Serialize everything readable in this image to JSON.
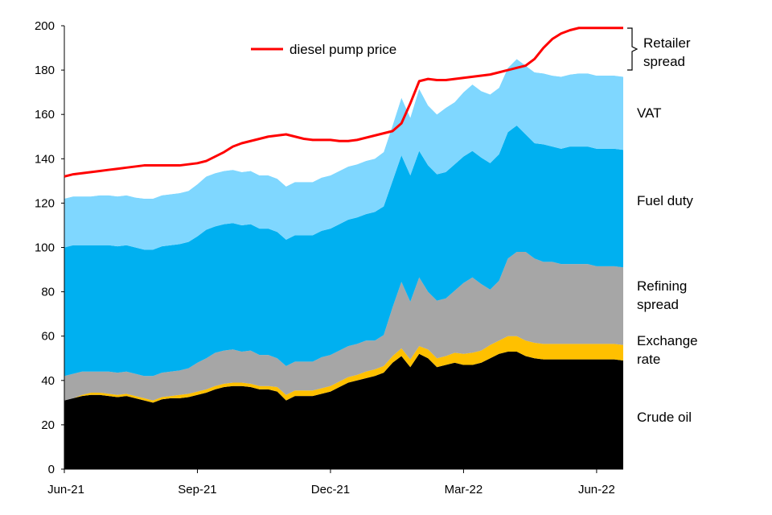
{
  "chart_data": {
    "type": "area",
    "stacked": true,
    "title": "",
    "xlabel": "",
    "ylabel": "",
    "ylim": [
      0,
      200
    ],
    "y_ticks": [
      0,
      20,
      40,
      60,
      80,
      100,
      120,
      140,
      160,
      180,
      200
    ],
    "x_tick_labels": [
      "Jun-21",
      "Sep-21",
      "Dec-21",
      "Mar-22",
      "Jun-22"
    ],
    "x_tick_index": [
      0,
      15,
      30,
      45,
      60
    ],
    "grid": false,
    "legend": {
      "position": "top-center",
      "entries": [
        "diesel pump price"
      ]
    },
    "x_count": 64,
    "series": [
      {
        "name": "Crude oil",
        "color": "#000000",
        "values": [
          31,
          32,
          33,
          33.5,
          33.5,
          33,
          32.5,
          33,
          32,
          31,
          30,
          31.5,
          32,
          32,
          32.5,
          33.5,
          34.5,
          36,
          37,
          37.5,
          37.5,
          37,
          36,
          36,
          35,
          31,
          33,
          33,
          33,
          34,
          35,
          37,
          39,
          40,
          41,
          42,
          43.5,
          48,
          51,
          46,
          52,
          50,
          46,
          47,
          48,
          47,
          47,
          48,
          50,
          52,
          53,
          53,
          51,
          50,
          49.5,
          49.5,
          49.5,
          49.5,
          49.5,
          49.5,
          49.5,
          49.5,
          49.5,
          49
        ]
      },
      {
        "name": "Exchange rate",
        "color": "#ffc000",
        "values": [
          0,
          0,
          0.5,
          1,
          1,
          1,
          1,
          1,
          1,
          1,
          1,
          1,
          1,
          1.5,
          1.5,
          1.5,
          1.5,
          1.5,
          1.5,
          1.5,
          1.5,
          1.5,
          1.5,
          1.5,
          2,
          2.5,
          2.5,
          2.5,
          2.5,
          2.5,
          2.5,
          2.5,
          2.5,
          2.5,
          3,
          3,
          3,
          3,
          3.5,
          3.5,
          3.5,
          4,
          4,
          4,
          4.5,
          5,
          5.5,
          5.5,
          6,
          6,
          7,
          7,
          7,
          7,
          7,
          7,
          7,
          7,
          7,
          7,
          7,
          7,
          7,
          7
        ]
      },
      {
        "name": "Refining spread",
        "color": "#a6a6a6",
        "values": [
          11,
          11,
          10.5,
          9.5,
          9.5,
          10,
          10,
          10,
          10,
          10,
          11,
          11,
          11,
          11,
          11.5,
          13,
          14,
          15,
          15,
          15,
          14,
          15,
          14,
          14,
          13,
          13,
          13,
          13,
          13,
          14,
          14,
          14,
          14,
          14,
          14,
          13,
          14,
          22,
          30,
          26,
          31,
          26,
          26,
          26,
          28,
          32,
          34,
          30,
          25,
          27,
          35,
          38,
          40,
          38,
          37,
          37,
          36,
          36,
          36,
          36,
          35,
          35,
          35,
          35
        ]
      },
      {
        "name": "Fuel duty",
        "color": "#00b0f0",
        "values": [
          58,
          58,
          57,
          57,
          57,
          57,
          57,
          57,
          57,
          57,
          57,
          57,
          57,
          57,
          57,
          57,
          58,
          57,
          57,
          57,
          57,
          57,
          57,
          57,
          57,
          57,
          57,
          57,
          57,
          57,
          57,
          57,
          57,
          57,
          57,
          58,
          58,
          57,
          57,
          57,
          57,
          57,
          57,
          57,
          57,
          57,
          57,
          57,
          57,
          57,
          57,
          57,
          53,
          52,
          53,
          52,
          52,
          53,
          53,
          53,
          53,
          53,
          53,
          53
        ]
      },
      {
        "name": "VAT",
        "color": "#7fd7ff",
        "values": [
          22,
          22,
          22,
          22,
          22.5,
          22.5,
          22.5,
          22.5,
          22.5,
          23,
          23,
          23,
          23,
          23,
          23,
          23.5,
          24,
          24,
          24,
          24,
          24,
          24,
          24,
          24,
          24,
          24,
          24,
          24,
          24,
          24,
          24,
          24,
          24,
          24,
          24,
          24,
          24.5,
          25,
          26,
          26,
          28,
          27,
          27,
          29,
          28,
          29,
          30,
          30,
          31,
          30,
          29,
          30,
          31,
          32,
          32,
          32,
          32.5,
          32.5,
          33,
          33,
          33,
          33,
          33,
          33
        ]
      },
      {
        "name": "Retailer spread",
        "color": "#ffffff",
        "values": [
          10,
          11,
          11,
          11,
          11,
          12,
          12,
          13,
          13,
          13,
          13,
          13,
          14,
          14,
          13,
          13,
          12,
          12,
          12,
          13,
          14,
          16,
          16,
          16,
          17,
          19,
          19,
          19,
          19,
          19,
          19,
          18,
          18,
          18,
          18,
          18,
          18,
          12,
          8,
          10,
          13,
          14,
          16,
          17,
          18,
          17,
          17,
          18,
          19,
          17,
          16,
          12,
          10,
          8,
          9,
          10,
          11,
          11,
          12,
          13,
          14,
          15,
          16,
          17
        ]
      }
    ],
    "pump_price": {
      "name": "diesel pump price",
      "color": "#ff0000",
      "values": [
        132,
        133,
        133.5,
        134,
        134.5,
        135,
        135.5,
        136,
        136.5,
        137,
        137,
        137,
        137,
        137,
        137.5,
        138,
        139,
        141,
        143,
        145.5,
        147,
        148,
        149,
        150,
        150.5,
        151,
        150,
        149,
        148.5,
        148.5,
        148.5,
        148,
        148,
        148.5,
        149.5,
        150.5,
        151.5,
        152.5,
        156,
        165,
        175,
        176,
        175.5,
        175.5,
        176,
        176.5,
        177,
        177.5,
        178,
        179,
        180,
        181,
        182,
        185,
        190,
        194,
        196.5,
        198,
        199,
        199,
        199,
        199,
        199,
        199
      ]
    },
    "annotations": [
      "Retailer spread",
      "VAT",
      "Fuel duty",
      "Refining spread",
      "Exchange rate",
      "Crude oil"
    ]
  }
}
